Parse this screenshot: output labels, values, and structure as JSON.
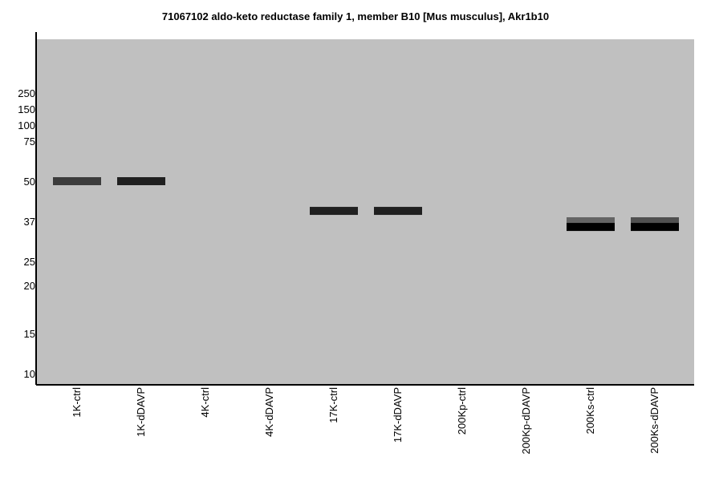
{
  "chart_data": {
    "type": "western-blot",
    "title": "71067102 aldo-keto reductase family 1, member B10 [Mus musculus], Akr1b10",
    "xlabel": "",
    "ylabel": "",
    "y_scale": "log",
    "background_color": "#c0c0c0",
    "grid": false,
    "y_ticks": [
      250,
      150,
      100,
      75,
      50,
      37,
      25,
      20,
      15,
      10
    ],
    "lanes": [
      "1K-ctrl",
      "1K-dDAVP",
      "4K-ctrl",
      "4K-dDAVP",
      "17K-ctrl",
      "17K-dDAVP",
      "200Kp-ctrl",
      "200Kp-dDAVP",
      "200Ks-ctrl",
      "200Ks-dDAVP"
    ],
    "bands": [
      {
        "lane": "1K-ctrl",
        "mw": 50,
        "color": "#3c3c3c"
      },
      {
        "lane": "1K-dDAVP",
        "mw": 50,
        "color": "#202020"
      },
      {
        "lane": "17K-ctrl",
        "mw": 40,
        "color": "#202020"
      },
      {
        "lane": "17K-dDAVP",
        "mw": 40,
        "color": "#202020"
      },
      {
        "lane": "200Ks-ctrl",
        "mw": 37,
        "color": "#646464"
      },
      {
        "lane": "200Ks-ctrl",
        "mw": 35,
        "color": "#000000"
      },
      {
        "lane": "200Ks-dDAVP",
        "mw": 37,
        "color": "#505050"
      },
      {
        "lane": "200Ks-dDAVP",
        "mw": 35,
        "color": "#000000"
      }
    ]
  }
}
